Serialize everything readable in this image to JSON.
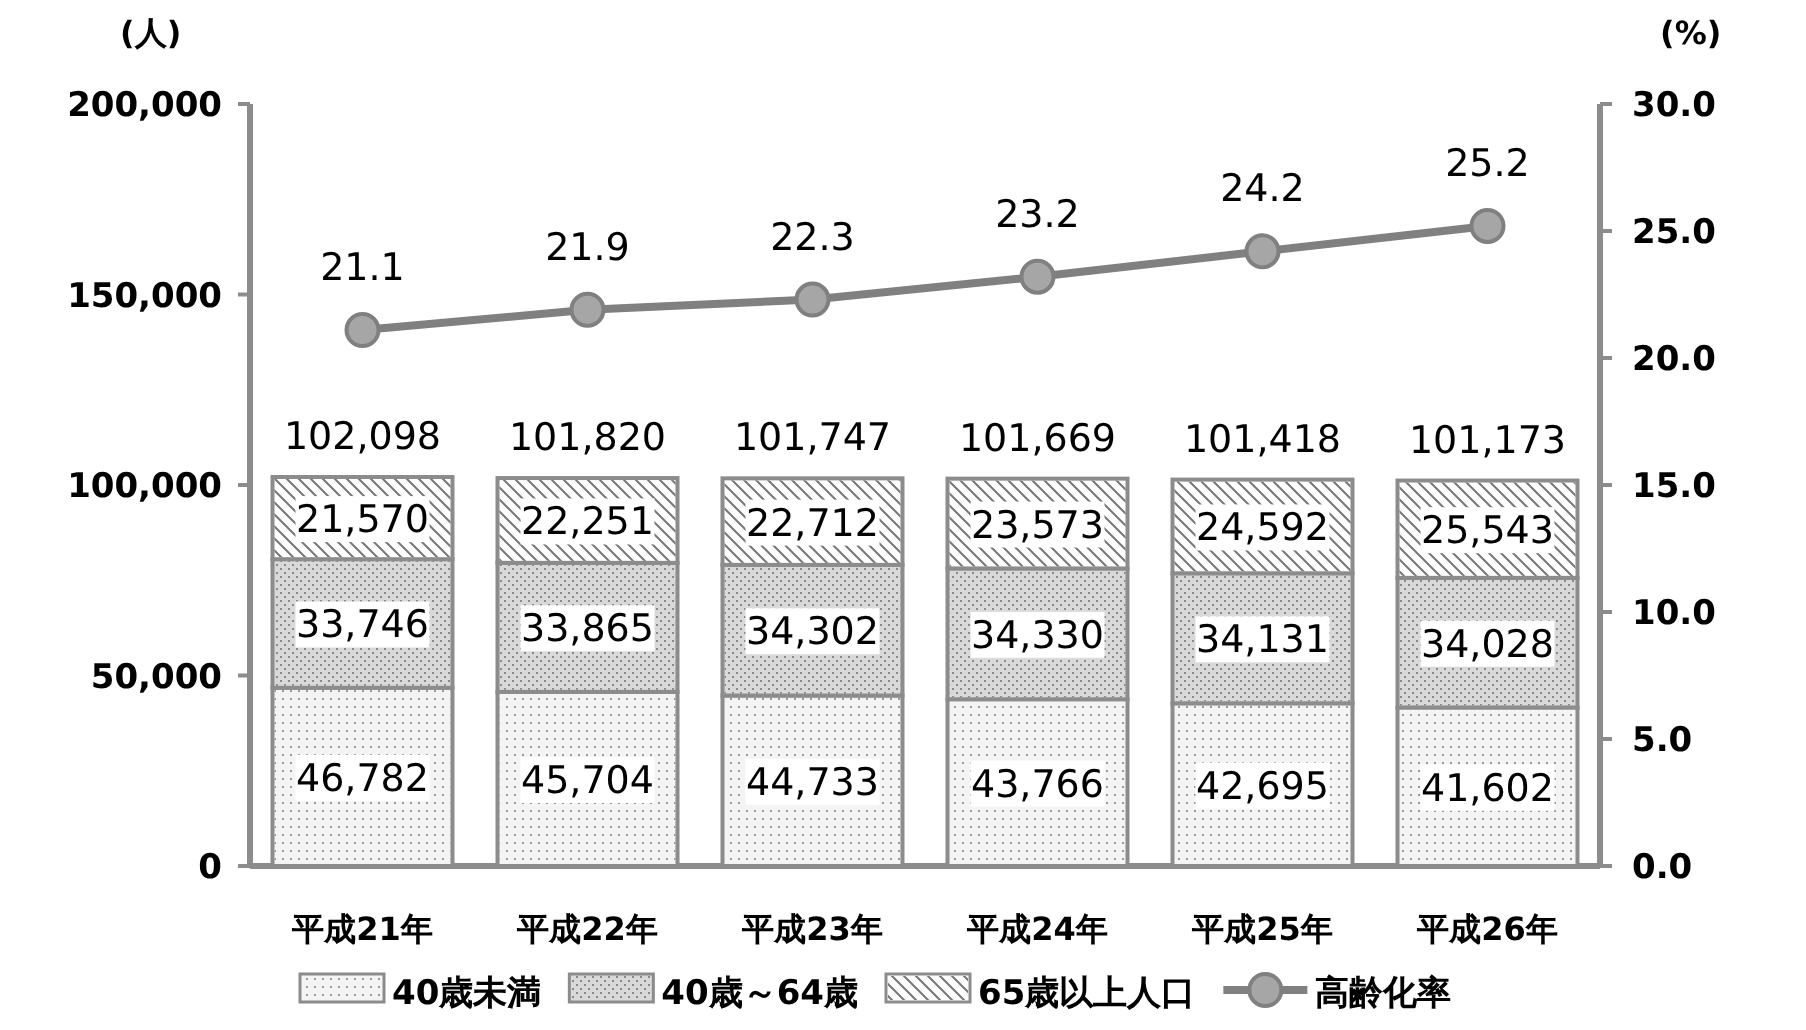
{
  "chart_data": {
    "type": "bar",
    "stacked": true,
    "ylabel": "(人)",
    "y2label": "(%)",
    "categories": [
      "平成21年",
      "平成22年",
      "平成23年",
      "平成24年",
      "平成25年",
      "平成26年"
    ],
    "series": [
      {
        "name": "40歳未満",
        "color": "#f4f4f4",
        "values": [
          46782,
          45704,
          44733,
          43766,
          42695,
          41602
        ],
        "value_labels": [
          "46,782",
          "45,704",
          "44,733",
          "43,766",
          "42,695",
          "41,602"
        ]
      },
      {
        "name": "40歳～64歳",
        "color": "#d9d9d9",
        "values": [
          33746,
          33865,
          34302,
          34330,
          34131,
          34028
        ],
        "value_labels": [
          "33,746",
          "33,865",
          "34,302",
          "34,330",
          "34,131",
          "34,028"
        ]
      },
      {
        "name": "65歳以上人口",
        "color": "#ffffff",
        "values": [
          21570,
          22251,
          22712,
          23573,
          24592,
          25543
        ],
        "value_labels": [
          "21,570",
          "22,251",
          "22,712",
          "23,573",
          "24,592",
          "25,543"
        ]
      },
      {
        "name": "高齢化率",
        "type": "line",
        "axis": "y2",
        "color": "#808080",
        "marker": "circle",
        "values": [
          21.1,
          21.9,
          22.3,
          23.2,
          24.2,
          25.2
        ],
        "value_labels": [
          "21.1",
          "21.9",
          "22.3",
          "23.2",
          "24.2",
          "25.2"
        ]
      }
    ],
    "totals": [
      "102,098",
      "101,820",
      "101,747",
      "101,669",
      "101,418",
      "101,173"
    ],
    "ylim": [
      0,
      200000
    ],
    "yticks": [
      {
        "value": 0,
        "label": "0"
      },
      {
        "value": 50000,
        "label": "50,000"
      },
      {
        "value": 100000,
        "label": "100,000"
      },
      {
        "value": 150000,
        "label": "150,000"
      },
      {
        "value": 200000,
        "label": "200,000"
      }
    ],
    "y2lim": [
      0,
      30
    ],
    "y2ticks": [
      {
        "value": 0,
        "label": "0.0"
      },
      {
        "value": 5,
        "label": "5.0"
      },
      {
        "value": 10,
        "label": "10.0"
      },
      {
        "value": 15,
        "label": "15.0"
      },
      {
        "value": 20,
        "label": "20.0"
      },
      {
        "value": 25,
        "label": "25.0"
      },
      {
        "value": 30,
        "label": "30.0"
      }
    ],
    "grid": false,
    "legend": "bottom"
  }
}
